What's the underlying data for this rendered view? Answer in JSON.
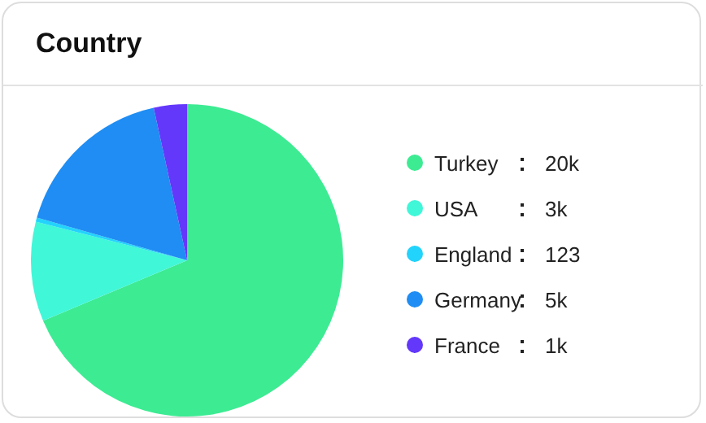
{
  "chart_data": {
    "type": "pie",
    "title": "Country",
    "categories": [
      "Turkey",
      "USA",
      "England",
      "Germany",
      "France"
    ],
    "values": [
      20000,
      3000,
      123,
      5000,
      1000
    ],
    "value_labels": [
      "20k",
      "3k",
      "123",
      "5k",
      "1k"
    ],
    "colors": [
      "#3deb93",
      "#40f7d8",
      "#22d3fc",
      "#1f8df3",
      "#6338fb"
    ],
    "legend": "right"
  }
}
